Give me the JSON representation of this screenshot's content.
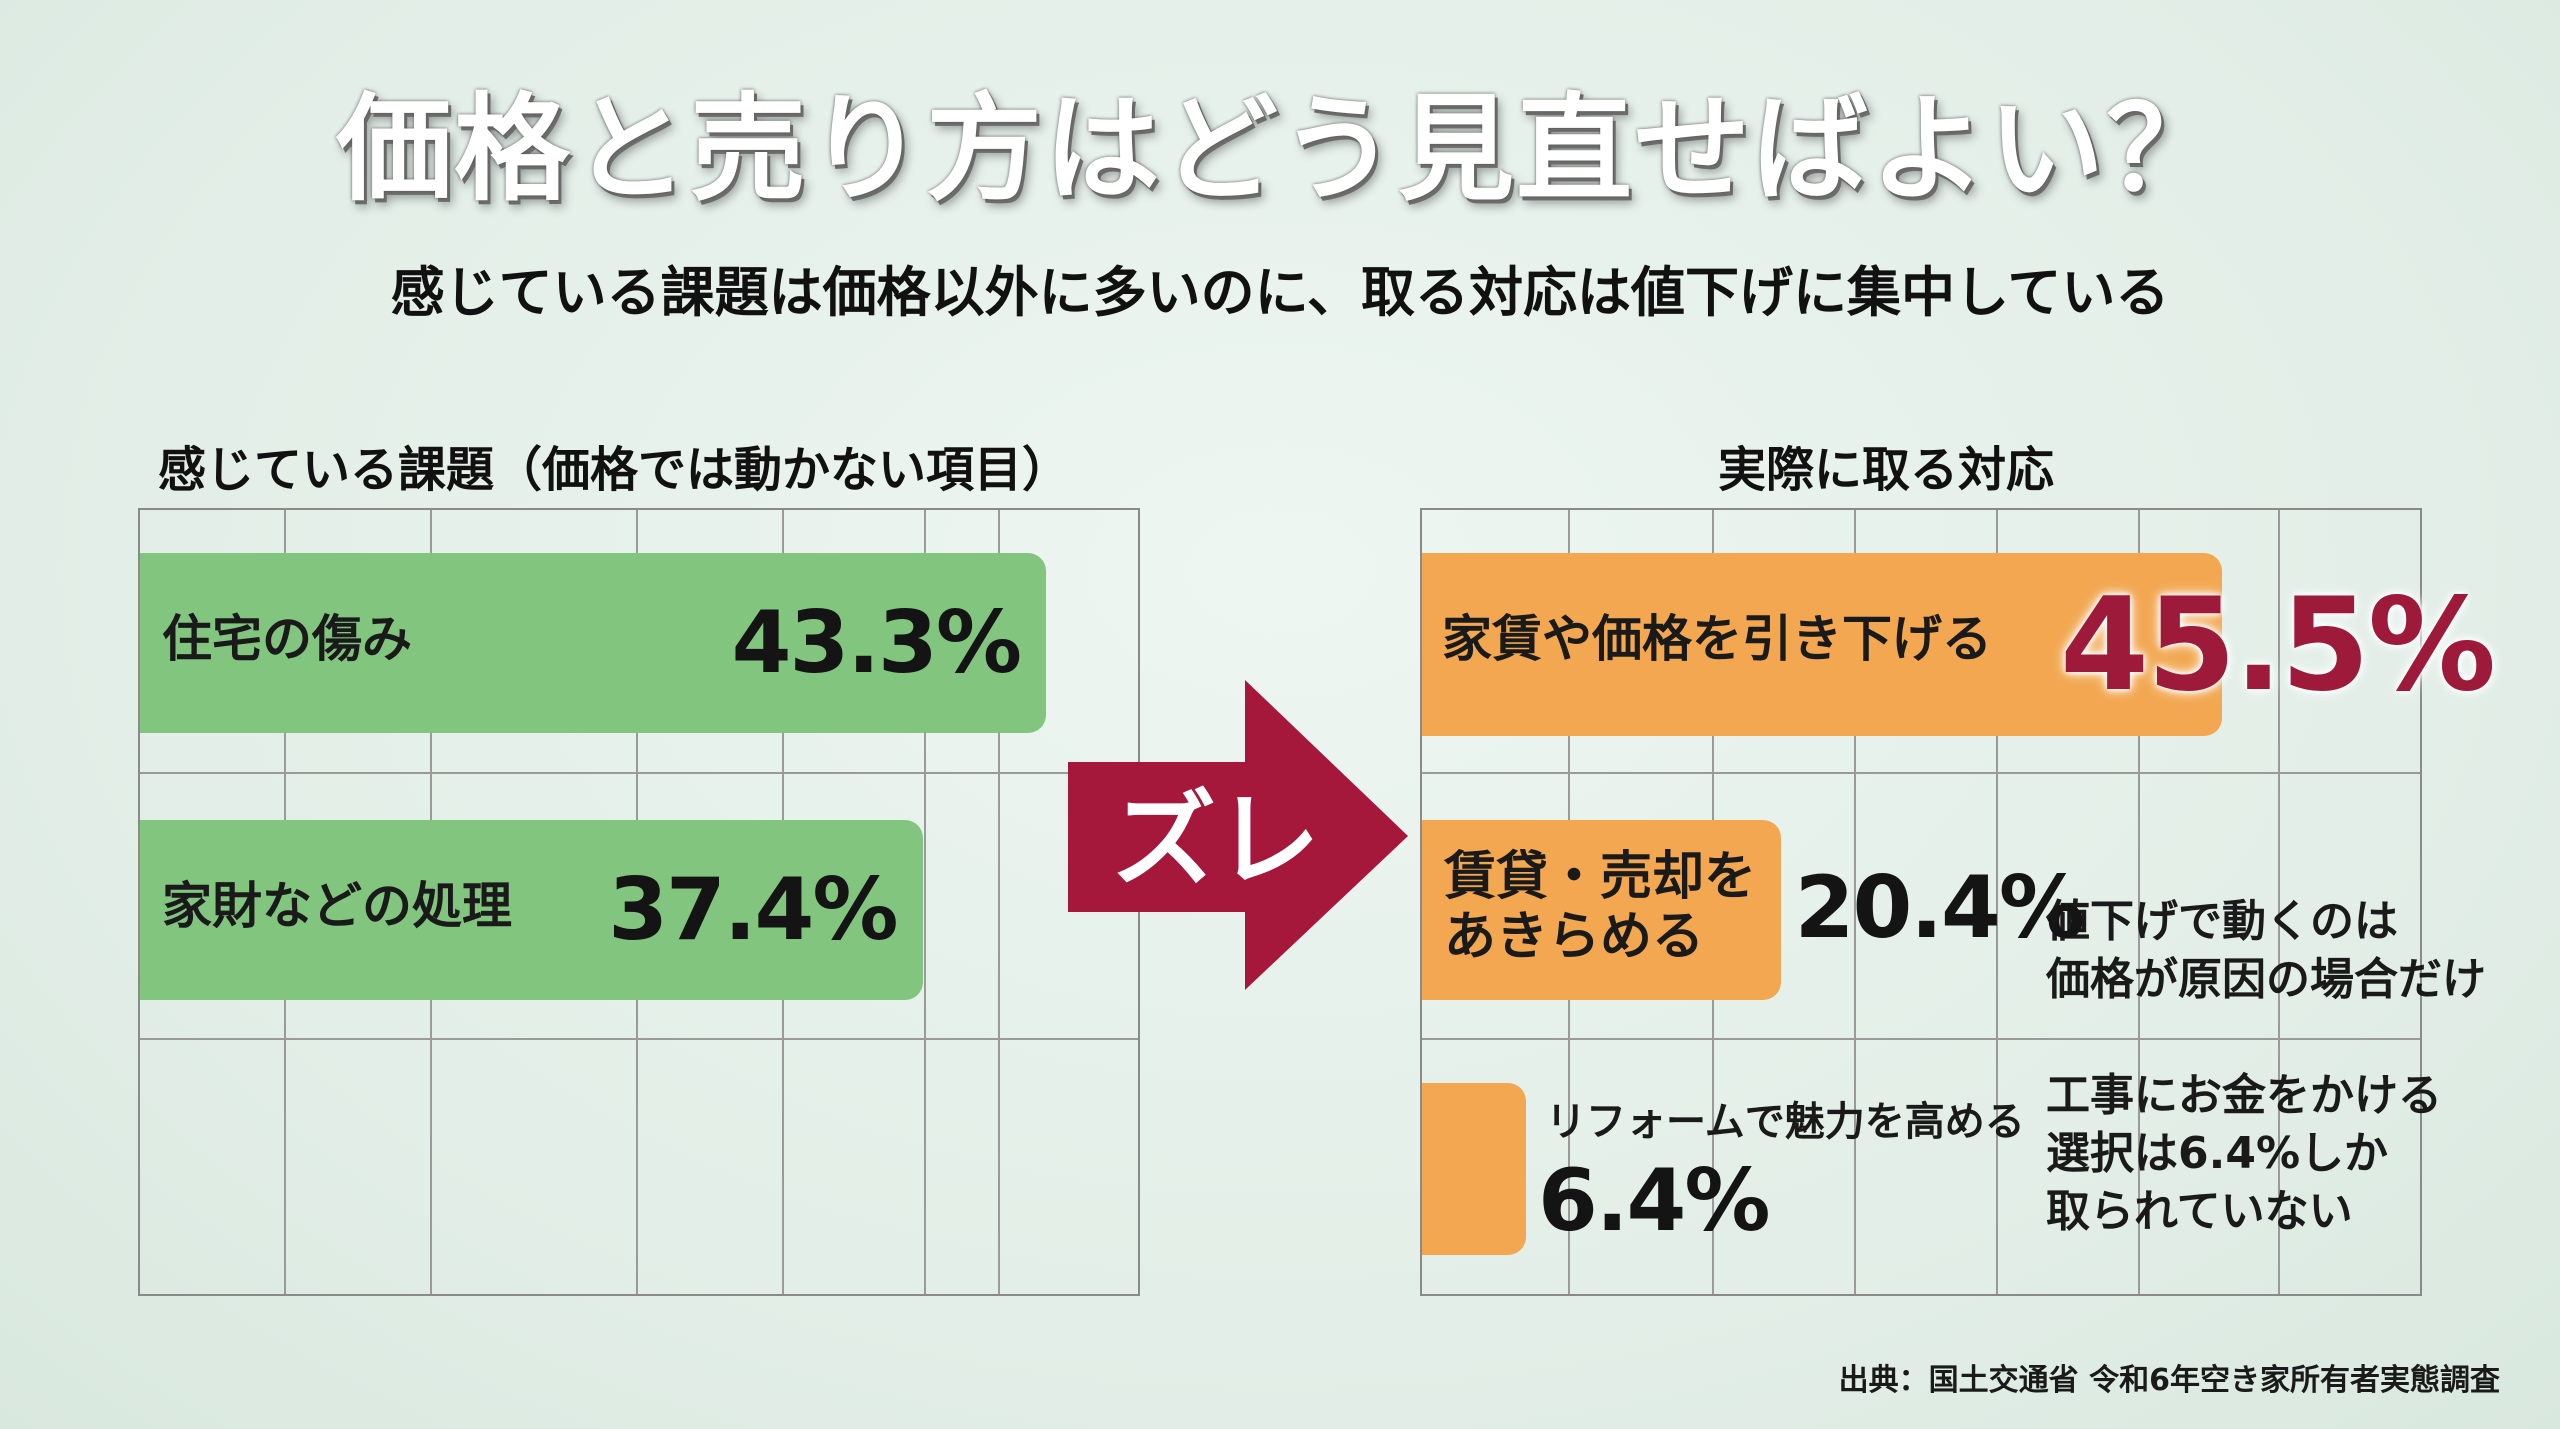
{
  "title": "価格と売り方はどう見直せばよい？",
  "subtitle": "感じている課題は価格以外に多いのに、取る対応は値下げに集中している",
  "arrow_label": "ズレ",
  "source": "出典：国土交通省 令和6年空き家所有者実態調査",
  "colors": {
    "green_bar": "#82c57f",
    "orange_bar": "#f2a750",
    "arrow": "#a5183c",
    "highlight_value": "#9e1a3a",
    "background": "#e3efe8"
  },
  "chart_data": [
    {
      "type": "bar",
      "orientation": "horizontal",
      "title": "感じている課題（価格では動かない項目）",
      "categories": [
        "住宅の傷み",
        "家財などの処理"
      ],
      "values": [
        43.3,
        37.4
      ],
      "value_labels": [
        "43.3%",
        "37.4%"
      ],
      "unit": "%",
      "grid": true
    },
    {
      "type": "bar",
      "orientation": "horizontal",
      "title": "実際に取る対応",
      "categories": [
        "家賃や価格を引き下げる",
        "賃貸・売却をあきらめる",
        "リフォームで魅力を高める"
      ],
      "category_lines": [
        [
          "家賃や価格を引き下げる"
        ],
        [
          "賃貸・売却を",
          "あきらめる"
        ],
        [
          "リフォームで魅力を高める"
        ]
      ],
      "values": [
        45.5,
        20.4,
        6.4
      ],
      "value_labels": [
        "45.5%",
        "20.4%",
        "6.4%"
      ],
      "unit": "%",
      "grid": true,
      "annotations": [
        [
          "値下げで動くのは",
          "価格が原因の場合だけ"
        ],
        [
          "工事にお金をかける",
          "選択は6.4%しか",
          "取られていない"
        ]
      ]
    }
  ]
}
